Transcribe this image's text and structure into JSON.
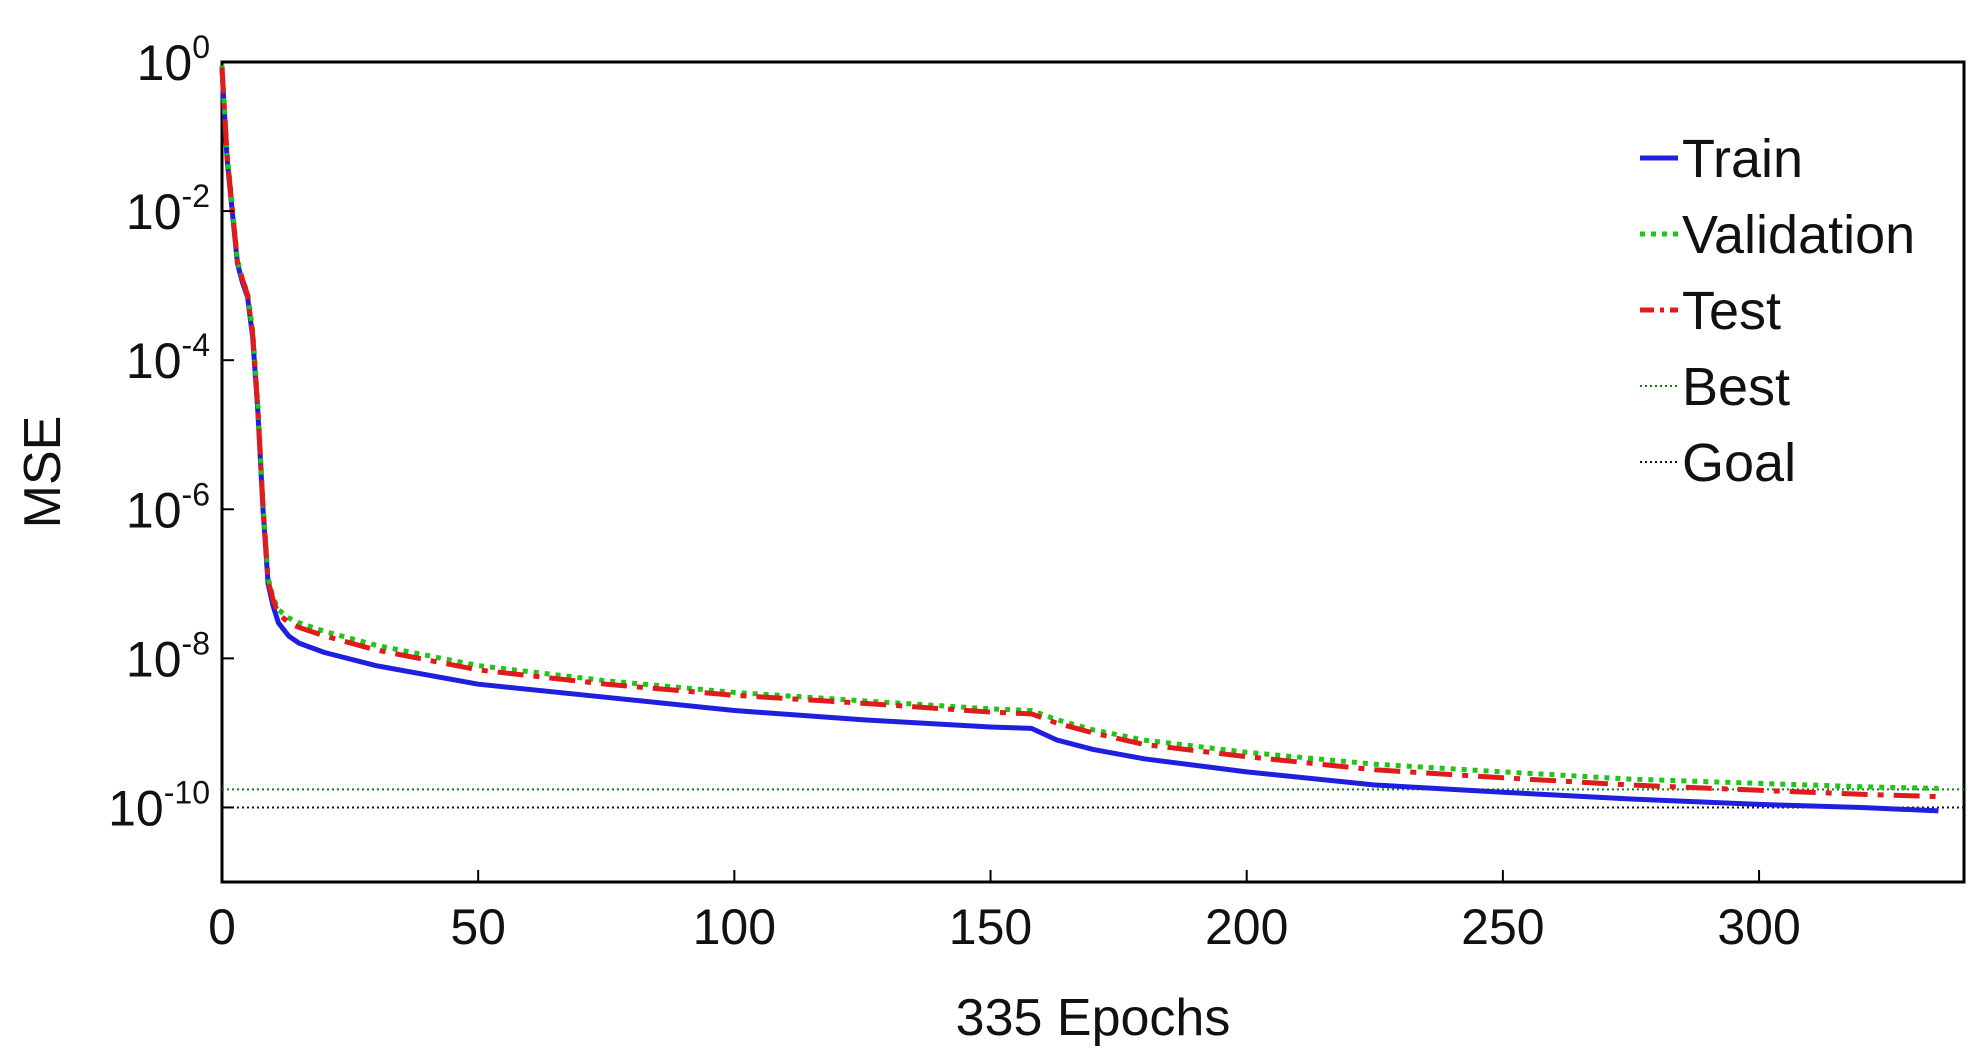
{
  "chart_data": {
    "type": "line",
    "xlabel": "335 Epochs",
    "ylabel": "MSE",
    "xlim": [
      0,
      340
    ],
    "ylim_log10": [
      -11,
      0
    ],
    "yscale": "log",
    "xticks": [
      0,
      50,
      100,
      150,
      200,
      250,
      300
    ],
    "xtick_labels": [
      "0",
      "50",
      "100",
      "150",
      "200",
      "250",
      "300"
    ],
    "yticks": [
      {
        "base": "10",
        "exp": "0",
        "log": 0
      },
      {
        "base": "10",
        "exp": "-2",
        "log": -2
      },
      {
        "base": "10",
        "exp": "-4",
        "log": -4
      },
      {
        "base": "10",
        "exp": "-6",
        "log": -6
      },
      {
        "base": "10",
        "exp": "-8",
        "log": -8
      },
      {
        "base": "10",
        "exp": "-10",
        "log": -10
      }
    ],
    "grid": false,
    "legend_position": "top-right",
    "series": [
      {
        "name": "Train",
        "color": "#1f1fe0",
        "style": "solid",
        "x": [
          0,
          1,
          2,
          3,
          4,
          5,
          6,
          7,
          8,
          9,
          10,
          11,
          13,
          15,
          20,
          30,
          50,
          75,
          100,
          125,
          150,
          158,
          163,
          170,
          180,
          200,
          225,
          250,
          275,
          300,
          320,
          335
        ],
        "y": [
          0.8,
          0.05,
          0.01,
          0.002,
          0.0011,
          0.0007,
          0.0002,
          2e-05,
          1e-06,
          1e-07,
          5e-08,
          3e-08,
          2e-08,
          1.6e-08,
          1.2e-08,
          8e-09,
          4.5e-09,
          3e-09,
          2e-09,
          1.5e-09,
          1.2e-09,
          1.15e-09,
          8e-10,
          6e-10,
          4.5e-10,
          3e-10,
          2e-10,
          1.6e-10,
          1.3e-10,
          1.1e-10,
          1e-10,
          9e-11
        ]
      },
      {
        "name": "Validation",
        "color": "#22c41a",
        "style": "dotted",
        "x": [
          0,
          1,
          2,
          3,
          4,
          5,
          6,
          7,
          8,
          9,
          10,
          11,
          13,
          15,
          20,
          30,
          50,
          75,
          100,
          125,
          150,
          158,
          163,
          170,
          180,
          200,
          225,
          250,
          275,
          300,
          320,
          335
        ],
        "y": [
          0.9,
          0.06,
          0.012,
          0.0022,
          0.0012,
          0.0008,
          0.00025,
          2.5e-05,
          1.2e-06,
          1.2e-07,
          6.5e-08,
          4.5e-08,
          3.5e-08,
          3e-08,
          2.3e-08,
          1.5e-08,
          8e-09,
          5e-09,
          3.5e-09,
          2.7e-09,
          2.1e-09,
          2e-09,
          1.5e-09,
          1.1e-09,
          8e-10,
          5.5e-10,
          3.8e-10,
          3e-10,
          2.4e-10,
          2.1e-10,
          1.9e-10,
          1.8e-10
        ]
      },
      {
        "name": "Test",
        "color": "#e01b1b",
        "style": "dashdot",
        "x": [
          0,
          1,
          2,
          3,
          4,
          5,
          6,
          7,
          8,
          9,
          10,
          11,
          13,
          15,
          20,
          30,
          50,
          75,
          100,
          125,
          150,
          158,
          163,
          170,
          180,
          200,
          225,
          250,
          275,
          300,
          320,
          335
        ],
        "y": [
          0.85,
          0.055,
          0.011,
          0.0021,
          0.0012,
          0.00075,
          0.00022,
          2.2e-05,
          1.1e-06,
          1.1e-07,
          6e-08,
          4e-08,
          3e-08,
          2.6e-08,
          2e-08,
          1.3e-08,
          7e-09,
          4.5e-09,
          3.2e-09,
          2.5e-09,
          1.9e-09,
          1.8e-09,
          1.35e-09,
          1e-09,
          7e-10,
          4.8e-10,
          3.2e-10,
          2.5e-10,
          2e-10,
          1.7e-10,
          1.5e-10,
          1.4e-10
        ]
      },
      {
        "name": "Best",
        "color": "#1a7a1a",
        "style": "dotted-thin",
        "constant": 1.75e-10
      },
      {
        "name": "Goal",
        "color": "#111111",
        "style": "dotted-thin",
        "constant": 1e-10
      }
    ]
  }
}
